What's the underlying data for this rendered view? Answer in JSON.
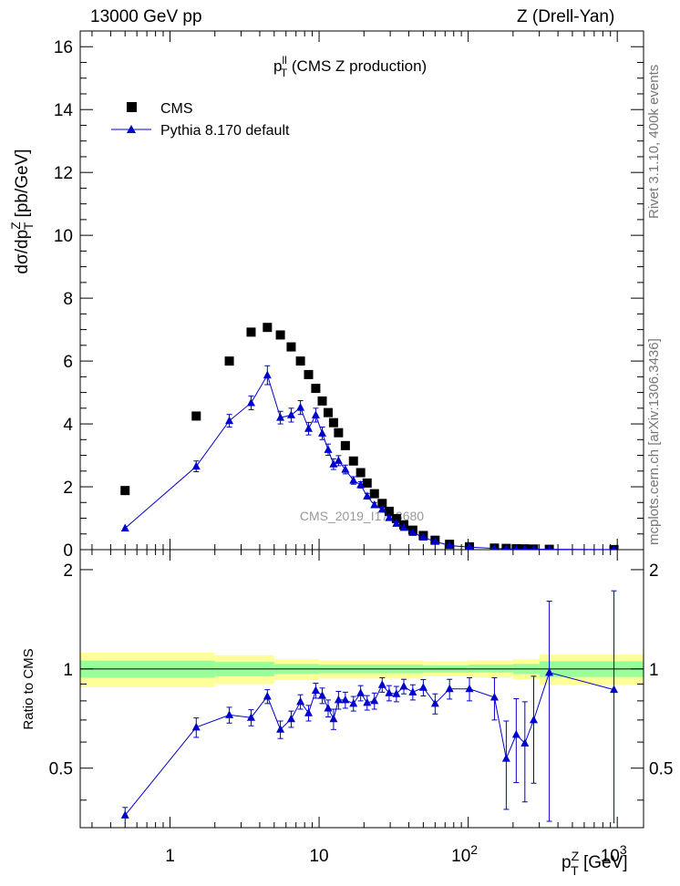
{
  "header": {
    "left": "13000 GeV pp",
    "right": "Z (Drell-Yan)"
  },
  "side_labels": {
    "upper": "Rivet 3.1.10,  400k events",
    "lower": "mcplots.cern.ch [arXiv:1306.3436]"
  },
  "watermark": "CMS_2019_I1753680",
  "colors": {
    "data": "#000000",
    "mc": "#0000cc",
    "band_outer": "#ffff99",
    "band_inner": "#99ff99",
    "background": "#ffffff"
  },
  "chart_data": [
    {
      "type": "scatter",
      "title_main": "p",
      "title_sup": "ll",
      "title_sub": "T",
      "title_rest": " (CMS Z production)",
      "ylabel": "dσ/dp_T^Z [pb/GeV]",
      "xscale": "log",
      "xlim": [
        0.25,
        1500
      ],
      "ylim": [
        0,
        16.5
      ],
      "yticks": [
        0,
        2,
        4,
        6,
        8,
        10,
        12,
        14,
        16
      ],
      "ytick_labels": [
        "0",
        "2",
        "4",
        "6",
        "8",
        "10",
        "12",
        "14",
        "16"
      ],
      "legend": {
        "position": "top-left",
        "entries": [
          "CMS",
          "Pythia 8.170 default"
        ]
      },
      "series": [
        {
          "name": "CMS",
          "marker": "square",
          "x": [
            0.5,
            1.5,
            2.5,
            3.5,
            4.5,
            5.5,
            6.5,
            7.5,
            8.5,
            9.5,
            10.5,
            11.5,
            12.5,
            13.5,
            15,
            17,
            19,
            21,
            23.5,
            26.5,
            29.5,
            33,
            37,
            42.5,
            50,
            60,
            75,
            102,
            150,
            180,
            210,
            240,
            275,
            350,
            950
          ],
          "y": [
            1.88,
            4.25,
            6.0,
            6.92,
            7.07,
            6.83,
            6.45,
            6.0,
            5.57,
            5.13,
            4.73,
            4.36,
            4.04,
            3.72,
            3.31,
            2.82,
            2.45,
            2.12,
            1.78,
            1.47,
            1.22,
            0.99,
            0.79,
            0.62,
            0.45,
            0.3,
            0.17,
            0.09,
            0.05,
            0.04,
            0.03,
            0.025,
            0.02,
            0.012,
            0.003
          ]
        },
        {
          "name": "Pythia 8.170 default",
          "marker": "triangle",
          "x": [
            0.5,
            1.5,
            2.5,
            3.5,
            4.5,
            5.5,
            6.5,
            7.5,
            8.5,
            9.5,
            10.5,
            11.5,
            12.5,
            13.5,
            15,
            17,
            19,
            21,
            23.5,
            26.5,
            29.5,
            33,
            37,
            42.5,
            50,
            60,
            75,
            102,
            150,
            180,
            210,
            240,
            275,
            350,
            950
          ],
          "y": [
            0.68,
            2.65,
            4.1,
            4.67,
            5.55,
            4.2,
            4.28,
            4.52,
            3.85,
            4.28,
            3.7,
            3.18,
            2.72,
            2.83,
            2.55,
            2.2,
            2.06,
            1.7,
            1.42,
            1.28,
            1.01,
            0.83,
            0.7,
            0.54,
            0.39,
            0.26,
            0.13,
            0.08,
            0.04,
            0.025,
            0.018,
            0.016,
            0.014,
            0.012,
            0.003
          ],
          "yerr": [
            0.03,
            0.17,
            0.2,
            0.22,
            0.3,
            0.2,
            0.22,
            0.22,
            0.2,
            0.22,
            0.2,
            0.18,
            0.17,
            0.16,
            0.14,
            0.12,
            0.1,
            0.09,
            0.08,
            0.07,
            0.06,
            0.05,
            0.04,
            0.03,
            0.02,
            0.02,
            0.01,
            0.01,
            0.01,
            0.01,
            0.01,
            0.01,
            0.01,
            0.01,
            0.003
          ]
        }
      ]
    },
    {
      "type": "scatter",
      "ylabel": "Ratio to CMS",
      "xlabel": "p_T^Z [GeV]",
      "xscale": "log",
      "xlim": [
        0.25,
        1500
      ],
      "ylim": [
        0.33,
        2.3
      ],
      "xticks": [
        1,
        10,
        100,
        1000
      ],
      "xtick_labels": [
        "1",
        "10",
        "10^2",
        "10^3"
      ],
      "yticks": [
        0.5,
        1,
        2
      ],
      "ytick_labels": [
        "0.5",
        "1",
        "2"
      ],
      "bands": {
        "edges": [
          0.25,
          1,
          2,
          5,
          10,
          50,
          100,
          200,
          300,
          1500
        ],
        "outer_lo": [
          0.88,
          0.88,
          0.9,
          0.925,
          0.935,
          0.95,
          0.945,
          0.93,
          0.895,
          0.89
        ],
        "outer_hi": [
          1.12,
          1.12,
          1.1,
          1.07,
          1.06,
          1.055,
          1.06,
          1.07,
          1.105,
          1.12
        ],
        "inner_lo": [
          0.94,
          0.94,
          0.95,
          0.965,
          0.97,
          0.975,
          0.975,
          0.965,
          0.945,
          0.945
        ],
        "inner_hi": [
          1.06,
          1.06,
          1.05,
          1.035,
          1.03,
          1.025,
          1.03,
          1.035,
          1.055,
          1.06
        ]
      },
      "series": [
        {
          "name": "Pythia 8.170 default",
          "x": [
            0.5,
            1.5,
            2.5,
            3.5,
            4.5,
            5.5,
            6.5,
            7.5,
            8.5,
            9.5,
            10.5,
            11.5,
            12.5,
            13.5,
            15,
            17,
            19,
            21,
            23.5,
            26.5,
            29.5,
            33,
            37,
            42.5,
            50,
            60,
            75,
            102,
            150,
            180,
            210,
            240,
            275,
            350,
            950
          ],
          "y": [
            0.36,
            0.665,
            0.725,
            0.712,
            0.825,
            0.655,
            0.705,
            0.795,
            0.735,
            0.86,
            0.83,
            0.76,
            0.705,
            0.805,
            0.805,
            0.785,
            0.845,
            0.79,
            0.8,
            0.895,
            0.845,
            0.84,
            0.885,
            0.85,
            0.878,
            0.785,
            0.87,
            0.87,
            0.82,
            0.535,
            0.632,
            0.595,
            0.7,
            0.975,
            0.865
          ],
          "yerr": [
            0.02,
            0.045,
            0.04,
            0.04,
            0.04,
            0.04,
            0.04,
            0.04,
            0.04,
            0.045,
            0.045,
            0.045,
            0.05,
            0.05,
            0.045,
            0.04,
            0.045,
            0.04,
            0.045,
            0.045,
            0.045,
            0.045,
            0.045,
            0.045,
            0.05,
            0.055,
            0.06,
            0.07,
            0.12,
            0.16,
            0.18,
            0.2,
            0.25,
            0.63,
            0.86
          ]
        }
      ]
    }
  ]
}
